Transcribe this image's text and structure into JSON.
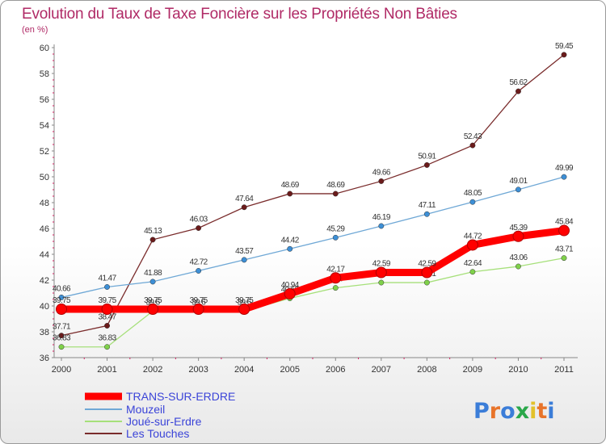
{
  "chart_data": {
    "type": "line",
    "title": "Evolution du Taux de Taxe Foncière sur les Propriétés Non Bâties",
    "subtitle": "(en %)",
    "x": [
      "2000",
      "2001",
      "2002",
      "2003",
      "2004",
      "2005",
      "2006",
      "2007",
      "2008",
      "2009",
      "2010",
      "2011"
    ],
    "ylim": [
      36,
      60
    ],
    "yticks": [
      "36",
      "38",
      "40",
      "42",
      "44",
      "46",
      "48",
      "50",
      "52",
      "54",
      "56",
      "58",
      "60"
    ],
    "grid": false,
    "legend_position": "bottom-left",
    "series": [
      {
        "name": "TRANS-SUR-ERDRE",
        "color": "#ff0000",
        "emphasis": true,
        "values": [
          39.75,
          39.75,
          39.75,
          39.75,
          39.75,
          40.94,
          42.17,
          42.59,
          42.59,
          44.72,
          45.39,
          45.84
        ],
        "labels": [
          "39.75",
          "39.75",
          "39.75",
          "39.75",
          "39.75",
          "40.94",
          "42.17",
          "42.59",
          "42.59",
          "44.72",
          "45.39",
          "45.84"
        ]
      },
      {
        "name": "Mouzeil",
        "color": "#6fa8d6",
        "marker": "#3d8fd6",
        "values": [
          40.66,
          41.47,
          41.88,
          42.72,
          43.57,
          44.42,
          45.29,
          46.19,
          47.11,
          48.05,
          49.01,
          49.99
        ],
        "labels": [
          "40.66",
          "41.47",
          "41.88",
          "42.72",
          "43.57",
          "44.42",
          "45.29",
          "46.19",
          "47.11",
          "48.05",
          "49.01",
          "49.99"
        ]
      },
      {
        "name": "Joué-sur-Erdre",
        "color": "#a6e07a",
        "marker": "#7fd14a",
        "values": [
          36.83,
          36.83,
          39.6,
          39.6,
          39.6,
          40.59,
          41.4,
          41.81,
          41.81,
          42.64,
          43.06,
          43.71
        ],
        "labels": [
          "36.83",
          "36.83",
          "39.6",
          "39.6",
          "39.6",
          "40.59",
          "41.4",
          "41.81",
          "41.81",
          "42.64",
          "43.06",
          "43.71"
        ]
      },
      {
        "name": "Les Touches",
        "color": "#7a2c2c",
        "marker": "#6b1b1b",
        "values": [
          37.71,
          38.47,
          45.13,
          46.03,
          47.64,
          48.69,
          48.69,
          49.66,
          50.91,
          52.43,
          56.62,
          59.45
        ],
        "labels": [
          "37.71",
          "38.47",
          "45.13",
          "46.03",
          "47.64",
          "48.69",
          "48.69",
          "49.66",
          "50.91",
          "52.43",
          "56.62",
          "59.45"
        ]
      }
    ]
  },
  "logo": {
    "text": "Proxiti",
    "colors": [
      "#3b7dd8",
      "#e8742a",
      "#3b7dd8",
      "#2aa84a",
      "#e2c12a",
      "#e8742a",
      "#3b7dd8"
    ]
  }
}
